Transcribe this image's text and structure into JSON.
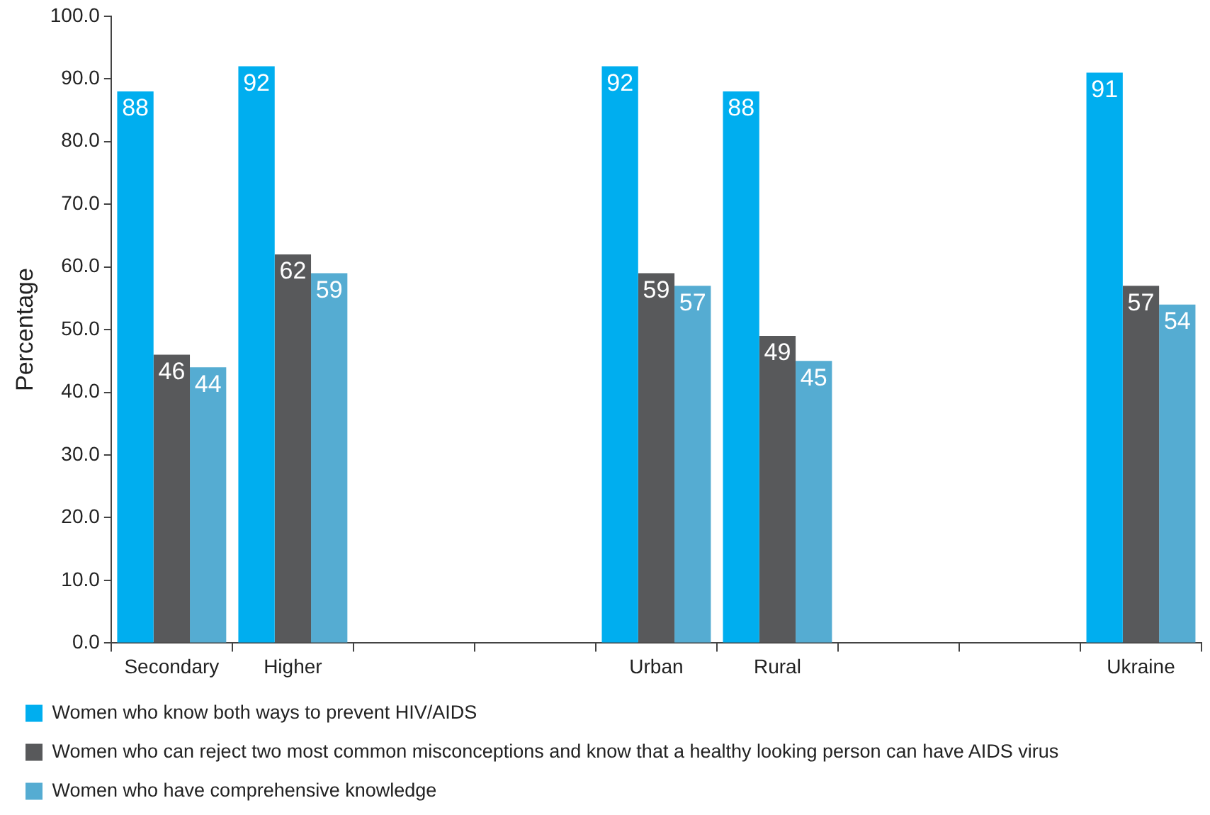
{
  "chart_data": {
    "type": "bar",
    "ylabel": "Percentage",
    "categories": [
      "Secondary",
      "Higher",
      null,
      null,
      "Urban",
      "Rural",
      null,
      null,
      "Ukraine"
    ],
    "series": [
      {
        "name": "Women who know both ways to prevent HIV/AIDS",
        "color": "#00aeef",
        "values": [
          88,
          92,
          null,
          null,
          92,
          88,
          null,
          null,
          91
        ]
      },
      {
        "name": "Women who can reject two most common misconceptions and know that a healthy looking person can have AIDS virus",
        "color": "#58595b",
        "values": [
          46,
          62,
          null,
          null,
          59,
          49,
          null,
          null,
          57
        ]
      },
      {
        "name": "Women who have comprehensive knowledge",
        "color": "#55acd2",
        "values": [
          44,
          59,
          null,
          null,
          57,
          45,
          null,
          null,
          54
        ]
      }
    ],
    "ylim": [
      0,
      100
    ],
    "yticks": [
      {
        "value": 0,
        "label": "0.0"
      },
      {
        "value": 10,
        "label": "10.0"
      },
      {
        "value": 20,
        "label": "20.0"
      },
      {
        "value": 30,
        "label": "30.0"
      },
      {
        "value": 40,
        "label": "40.0"
      },
      {
        "value": 50,
        "label": "50.0"
      },
      {
        "value": 60,
        "label": "60.0"
      },
      {
        "value": 70,
        "label": "70.0"
      },
      {
        "value": 80,
        "label": "80.0"
      },
      {
        "value": 90,
        "label": "90.0"
      },
      {
        "value": 100,
        "label": "100.0"
      }
    ],
    "grid": false,
    "legend": "bottom",
    "data_labels": true
  }
}
